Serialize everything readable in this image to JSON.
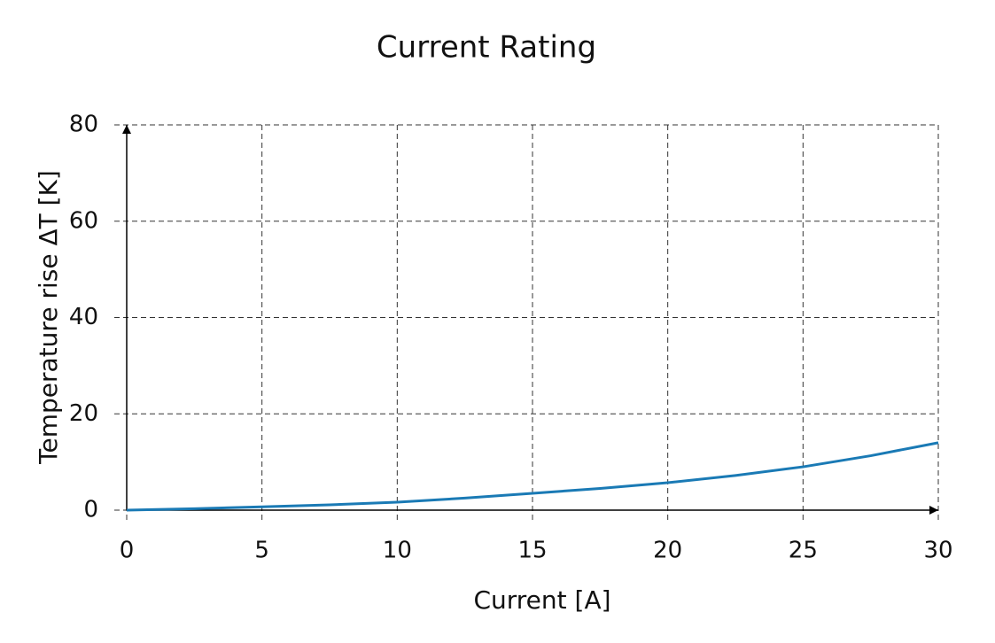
{
  "chart_data": {
    "type": "line",
    "title": "Current Rating",
    "x_label": "Current [A]",
    "y_label": "Temperature rise ΔT [K]",
    "x": [
      0,
      2.5,
      5,
      7.5,
      10,
      12.5,
      15,
      17.5,
      20,
      22.5,
      25,
      27.5,
      30
    ],
    "values": [
      0,
      0.3,
      0.7,
      1.1,
      1.65,
      2.5,
      3.5,
      4.5,
      5.7,
      7.2,
      9.0,
      11.3,
      14.0
    ],
    "color": "#1a7ab5",
    "xlim": [
      0,
      30
    ],
    "xticks": [
      0,
      5,
      10,
      15,
      20,
      25,
      30
    ],
    "ylim": [
      0,
      80
    ],
    "yticks": [
      0,
      20,
      40,
      60,
      80
    ],
    "grid": true
  }
}
